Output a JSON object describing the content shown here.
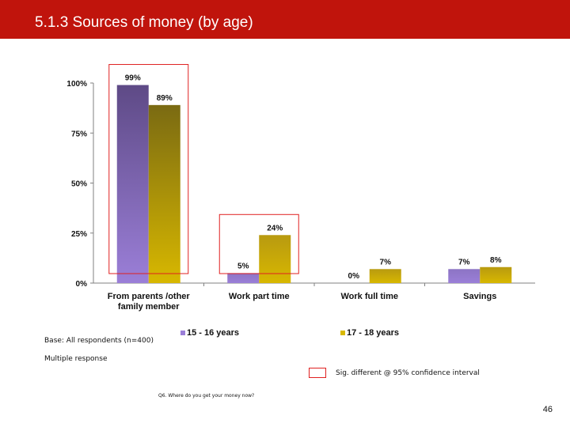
{
  "header": {
    "title": "5.1.3 Sources of money (by age)"
  },
  "colors": {
    "header_bg": "#c0140c",
    "series1": "#9b7fd8",
    "series2": "#d8b800",
    "sig_box": "#e02020"
  },
  "chart_data": {
    "type": "bar",
    "categories": [
      "From parents /other family member",
      "Work part time",
      "Work full time",
      "Savings"
    ],
    "category_lines": [
      [
        "From parents /other",
        "family member"
      ],
      [
        "Work part time"
      ],
      [
        "Work full time"
      ],
      [
        "Savings"
      ]
    ],
    "series": [
      {
        "name": "15 - 16 years",
        "values": [
          99,
          5,
          0,
          7
        ],
        "labels": [
          "99%",
          "5%",
          "0%",
          "7%"
        ]
      },
      {
        "name": "17 - 18 years",
        "values": [
          89,
          24,
          7,
          8
        ],
        "labels": [
          "89%",
          "24%",
          "7%",
          "8%"
        ]
      }
    ],
    "yticks": [
      "0%",
      "25%",
      "50%",
      "75%",
      "100%"
    ],
    "ytick_values": [
      0,
      25,
      50,
      75,
      100
    ],
    "ylim": [
      0,
      100
    ],
    "grid": false,
    "legend": "bottom",
    "sig_highlights": [
      0,
      1
    ]
  },
  "notes": {
    "base": "Base: All respondents (n=400)",
    "multiple": "Multiple response",
    "sig": "Sig. different @ 95% confidence interval",
    "question": "Q6. Where do you get your money now?",
    "page_number": "46"
  }
}
